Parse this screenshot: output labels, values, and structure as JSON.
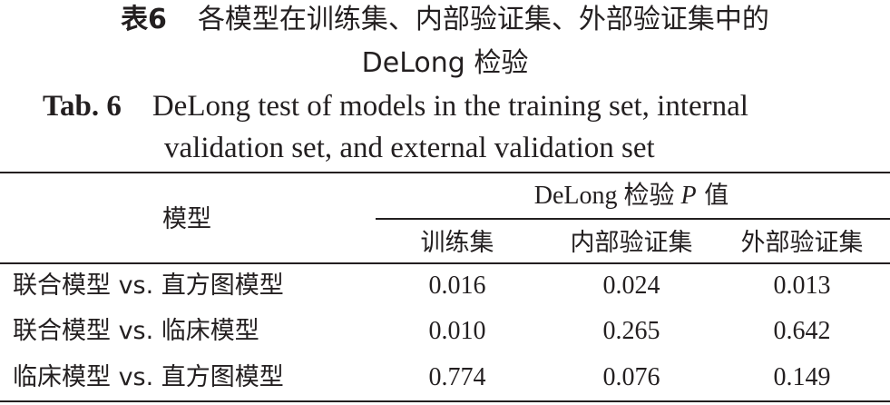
{
  "caption": {
    "cn_label": "表6",
    "cn_line1": "各模型在训练集、内部验证集、外部验证集中的",
    "cn_line2": "DeLong 检验",
    "en_label": "Tab. 6",
    "en_line1": "DeLong test of models in the training set, internal",
    "en_line2": "validation set, and external validation set"
  },
  "table": {
    "row_header": "模型",
    "group_header_prefix": "DeLong 检验 ",
    "group_header_p": "P",
    "group_header_suffix": " 值",
    "columns": [
      "训练集",
      "内部验证集",
      "外部验证集"
    ],
    "rows": [
      {
        "model": "联合模型 vs. 直方图模型",
        "values": [
          "0.016",
          "0.024",
          "0.013"
        ]
      },
      {
        "model": "联合模型 vs. 临床模型",
        "values": [
          "0.010",
          "0.265",
          "0.642"
        ]
      },
      {
        "model": "临床模型 vs. 直方图模型",
        "values": [
          "0.774",
          "0.076",
          "0.149"
        ]
      }
    ]
  }
}
